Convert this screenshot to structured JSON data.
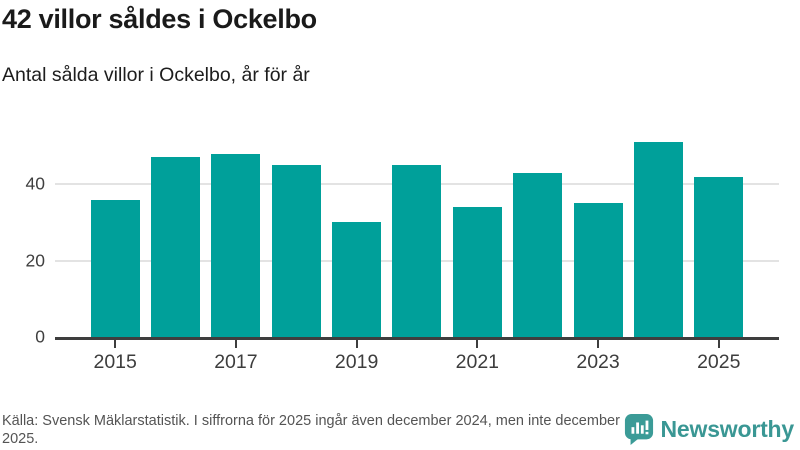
{
  "header": {
    "title": "42 villor såldes i Ockelbo",
    "subtitle": "Antal sålda villor i Ockelbo, år för år"
  },
  "chart_data": {
    "type": "bar",
    "categories": [
      "2015",
      "2016",
      "2017",
      "2018",
      "2019",
      "2020",
      "2021",
      "2022",
      "2023",
      "2024",
      "2025"
    ],
    "values": [
      36,
      47,
      48,
      45,
      30,
      45,
      34,
      43,
      35,
      51,
      42
    ],
    "title": "42 villor såldes i Ockelbo",
    "subtitle": "Antal sålda villor i Ockelbo, år för år",
    "xlabel": "",
    "ylabel": "",
    "ylim": [
      0,
      55.5
    ],
    "yticks": [
      0,
      20,
      40
    ],
    "x_tick_labels": [
      "2015",
      "2017",
      "2019",
      "2021",
      "2023",
      "2025"
    ],
    "grid": true,
    "legend_position": "none",
    "bar_color": "#00a09a"
  },
  "footer": {
    "source_text": "Källa: Svensk Mäklarstatistik. I siffrorna för 2025 ingår även december 2024, men inte december 2025.",
    "brand_name": "Newsworthy"
  },
  "colors": {
    "bar": "#00a09a",
    "brand_teal": "#3a9794",
    "gridline": "#e3e3e3",
    "axis": "#3e3e3e",
    "title_text": "#1a1a1a",
    "footer_text": "#545454"
  }
}
